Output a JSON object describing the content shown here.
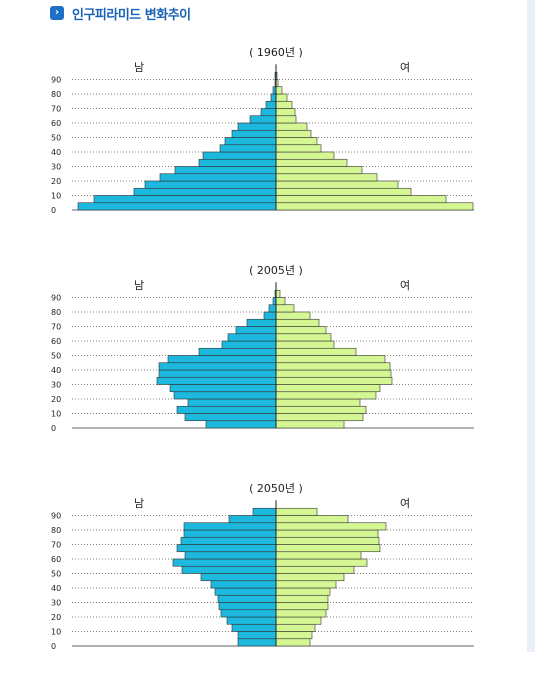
{
  "header": {
    "icon": "chevron-right-icon",
    "title": "인구피라미드 변화추이"
  },
  "colors": {
    "male": "#1cb8de",
    "female": "#d5f793",
    "bar_stroke": "#333333",
    "title": "#1a62b8"
  },
  "chart_data": [
    {
      "type": "bar",
      "title": "( 1960년 )",
      "left_label": "남",
      "right_label": "여",
      "y_ticks": [
        "90",
        "80",
        "70",
        "60",
        "50",
        "40",
        "30",
        "20",
        "10",
        "0"
      ],
      "groups": [
        "0",
        "5",
        "10",
        "15",
        "20",
        "25",
        "30",
        "35",
        "40",
        "45",
        "50",
        "55",
        "60",
        "65",
        "70",
        "75",
        "80",
        "85",
        "90"
      ],
      "male": [
        198,
        182,
        142,
        131,
        116,
        101,
        77,
        73,
        56,
        51,
        44,
        38,
        26,
        15,
        10,
        5,
        3,
        1,
        1
      ],
      "female": [
        197,
        170,
        135,
        122,
        101,
        86,
        71,
        58,
        45,
        41,
        35,
        31,
        20,
        19,
        16,
        11,
        6,
        2,
        1
      ],
      "xlim": [
        -200,
        200
      ]
    },
    {
      "type": "bar",
      "title": "( 2005년 )",
      "left_label": "남",
      "right_label": "여",
      "y_ticks": [
        "90",
        "80",
        "70",
        "60",
        "50",
        "40",
        "30",
        "20",
        "10",
        "0"
      ],
      "groups": [
        "0",
        "5",
        "10",
        "15",
        "20",
        "25",
        "30",
        "35",
        "40",
        "45",
        "50",
        "55",
        "60",
        "65",
        "70",
        "75",
        "80",
        "85",
        "90"
      ],
      "male": [
        70,
        91,
        99,
        88,
        102,
        106,
        119,
        117,
        117,
        108,
        77,
        54,
        48,
        40,
        29,
        12,
        7,
        3,
        1
      ],
      "female": [
        68,
        87,
        90,
        84,
        100,
        104,
        116,
        115,
        114,
        109,
        80,
        58,
        55,
        50,
        43,
        34,
        18,
        9,
        4
      ],
      "xlim": [
        -200,
        200
      ]
    },
    {
      "type": "bar",
      "title": "( 2050년 )",
      "left_label": "남",
      "right_label": "여",
      "y_ticks": [
        "90",
        "80",
        "70",
        "60",
        "50",
        "40",
        "30",
        "20",
        "10",
        "0"
      ],
      "groups": [
        "0",
        "5",
        "10",
        "15",
        "20",
        "25",
        "30",
        "35",
        "40",
        "45",
        "50",
        "55",
        "60",
        "65",
        "70",
        "75",
        "80",
        "85",
        "90"
      ],
      "male": [
        38,
        38,
        44,
        49,
        55,
        57,
        58,
        61,
        65,
        75,
        94,
        103,
        91,
        99,
        95,
        92,
        92,
        47,
        23
      ],
      "female": [
        34,
        36,
        39,
        45,
        50,
        52,
        52,
        54,
        60,
        68,
        78,
        91,
        85,
        104,
        103,
        102,
        110,
        72,
        41
      ],
      "xlim": [
        -200,
        200
      ]
    }
  ]
}
